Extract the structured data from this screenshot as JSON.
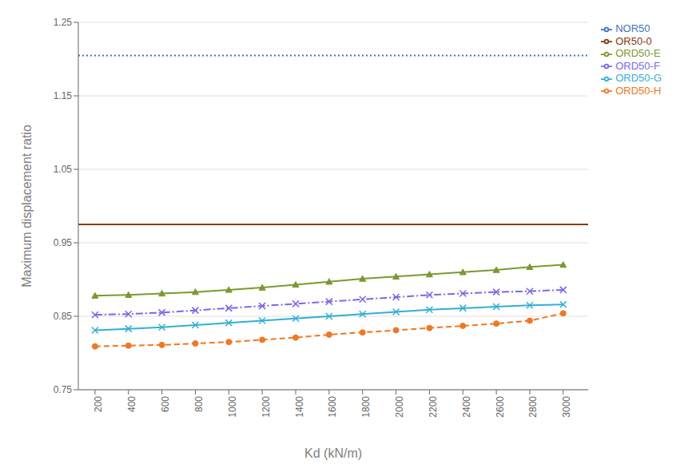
{
  "chart_data": {
    "type": "line",
    "xlabel": "Kd (kN/m)",
    "ylabel": "Maximum displacement ratio",
    "x": [
      200,
      400,
      600,
      800,
      1000,
      1200,
      1400,
      1600,
      1800,
      2000,
      2200,
      2400,
      2600,
      2800,
      3000
    ],
    "series": [
      {
        "name": "NOR50",
        "type": "hline",
        "value": 1.205,
        "color": "#4472C4",
        "line_style": "dotted"
      },
      {
        "name": "OR50-0",
        "type": "hline",
        "value": 0.975,
        "color": "#843C0C",
        "line_style": "solid"
      },
      {
        "name": "ORD50-E",
        "type": "line",
        "values": [
          0.878,
          0.879,
          0.881,
          0.883,
          0.886,
          0.889,
          0.893,
          0.897,
          0.901,
          0.904,
          0.907,
          0.91,
          0.913,
          0.917,
          0.92
        ],
        "color": "#7A9A2E",
        "line_style": "solid",
        "marker": "triangle"
      },
      {
        "name": "ORD50-F",
        "type": "line",
        "values": [
          0.852,
          0.853,
          0.855,
          0.858,
          0.861,
          0.864,
          0.867,
          0.87,
          0.873,
          0.876,
          0.879,
          0.881,
          0.883,
          0.884,
          0.886
        ],
        "color": "#7B68EE",
        "line_style": "dashdot",
        "marker": "x"
      },
      {
        "name": "ORD50-G",
        "type": "line",
        "values": [
          0.831,
          0.833,
          0.835,
          0.838,
          0.841,
          0.844,
          0.847,
          0.85,
          0.853,
          0.856,
          0.859,
          0.861,
          0.863,
          0.865,
          0.866
        ],
        "color": "#31B0D5",
        "line_style": "solid",
        "marker": "x"
      },
      {
        "name": "ORD50-H",
        "type": "line",
        "values": [
          0.809,
          0.81,
          0.811,
          0.813,
          0.815,
          0.818,
          0.821,
          0.825,
          0.828,
          0.831,
          0.834,
          0.837,
          0.84,
          0.844,
          0.854
        ],
        "color": "#F07820",
        "line_style": "dashed",
        "marker": "circle"
      }
    ],
    "xlim": [
      100,
      3150
    ],
    "xticks": [
      200,
      400,
      600,
      800,
      1000,
      1200,
      1400,
      1600,
      1800,
      2000,
      2200,
      2400,
      2600,
      2800,
      3000
    ],
    "ylim": [
      0.75,
      1.25
    ],
    "yticks": [
      0.75,
      0.85,
      0.95,
      1.05,
      1.15,
      1.25
    ],
    "grid": "y",
    "legend": "upper right"
  }
}
